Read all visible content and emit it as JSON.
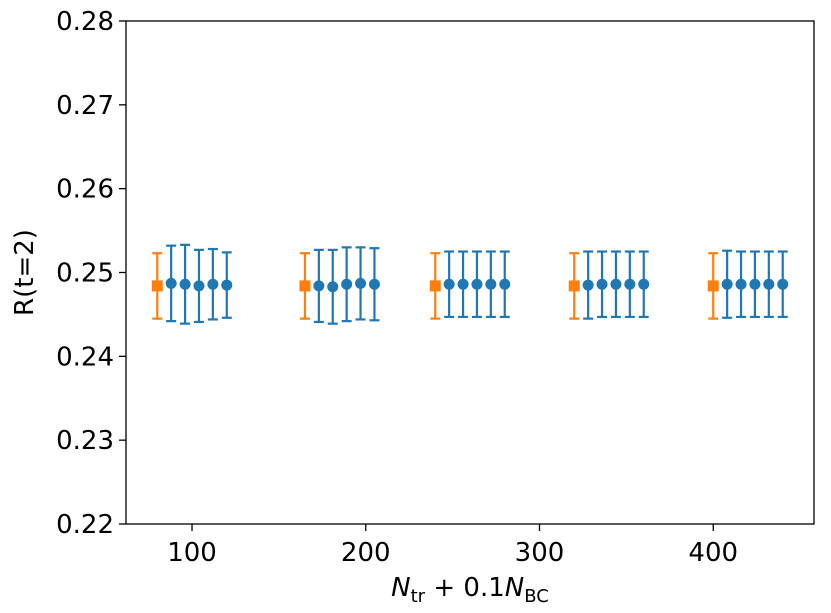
{
  "chart_data": {
    "type": "scatter",
    "title": "",
    "xlabel": "N_tr + 0.1N_BC",
    "xlabel_parts": {
      "n1": "N",
      "sub1": "tr",
      "mid": " + 0.1",
      "n2": "N",
      "sub2": "BC"
    },
    "ylabel": "R(t=2)",
    "xlim": [
      62,
      458
    ],
    "ylim": [
      0.22,
      0.28
    ],
    "xticks": [
      100,
      200,
      300,
      400
    ],
    "xtick_labels": [
      "100",
      "200",
      "300",
      "400"
    ],
    "yticks": [
      0.22,
      0.23,
      0.24,
      0.25,
      0.26,
      0.27,
      0.28
    ],
    "ytick_labels": [
      "0.22",
      "0.23",
      "0.24",
      "0.25",
      "0.26",
      "0.27",
      "0.28"
    ],
    "grid": false,
    "legend": false,
    "series": [
      {
        "color": "#ff7f0e",
        "marker": "square",
        "points": [
          {
            "x": 80,
            "y": 0.2484,
            "err": 0.0039
          },
          {
            "x": 165,
            "y": 0.2484,
            "err": 0.0039
          },
          {
            "x": 240,
            "y": 0.2484,
            "err": 0.0039
          },
          {
            "x": 320,
            "y": 0.2484,
            "err": 0.0039
          },
          {
            "x": 400,
            "y": 0.2484,
            "err": 0.0039
          }
        ]
      },
      {
        "color": "#1f77b4",
        "marker": "circle",
        "points": [
          {
            "x": 88,
            "y": 0.2487,
            "err": 0.0045
          },
          {
            "x": 96,
            "y": 0.2486,
            "err": 0.0047
          },
          {
            "x": 104,
            "y": 0.2484,
            "err": 0.0043
          },
          {
            "x": 112,
            "y": 0.2486,
            "err": 0.0042
          },
          {
            "x": 120,
            "y": 0.2485,
            "err": 0.0039
          },
          {
            "x": 173,
            "y": 0.2484,
            "err": 0.0043
          },
          {
            "x": 181,
            "y": 0.2483,
            "err": 0.0044
          },
          {
            "x": 189,
            "y": 0.2486,
            "err": 0.0044
          },
          {
            "x": 197,
            "y": 0.2487,
            "err": 0.0043
          },
          {
            "x": 205,
            "y": 0.2486,
            "err": 0.0043
          },
          {
            "x": 248,
            "y": 0.2486,
            "err": 0.0039
          },
          {
            "x": 256,
            "y": 0.2486,
            "err": 0.0039
          },
          {
            "x": 264,
            "y": 0.2486,
            "err": 0.0039
          },
          {
            "x": 272,
            "y": 0.2486,
            "err": 0.0039
          },
          {
            "x": 280,
            "y": 0.2486,
            "err": 0.0039
          },
          {
            "x": 328,
            "y": 0.2485,
            "err": 0.004
          },
          {
            "x": 336,
            "y": 0.2486,
            "err": 0.0039
          },
          {
            "x": 344,
            "y": 0.2486,
            "err": 0.0039
          },
          {
            "x": 352,
            "y": 0.2486,
            "err": 0.0039
          },
          {
            "x": 360,
            "y": 0.2486,
            "err": 0.0039
          },
          {
            "x": 408,
            "y": 0.2486,
            "err": 0.004
          },
          {
            "x": 416,
            "y": 0.2486,
            "err": 0.0039
          },
          {
            "x": 424,
            "y": 0.2486,
            "err": 0.0039
          },
          {
            "x": 432,
            "y": 0.2486,
            "err": 0.0039
          },
          {
            "x": 440,
            "y": 0.2486,
            "err": 0.0039
          }
        ]
      }
    ]
  }
}
